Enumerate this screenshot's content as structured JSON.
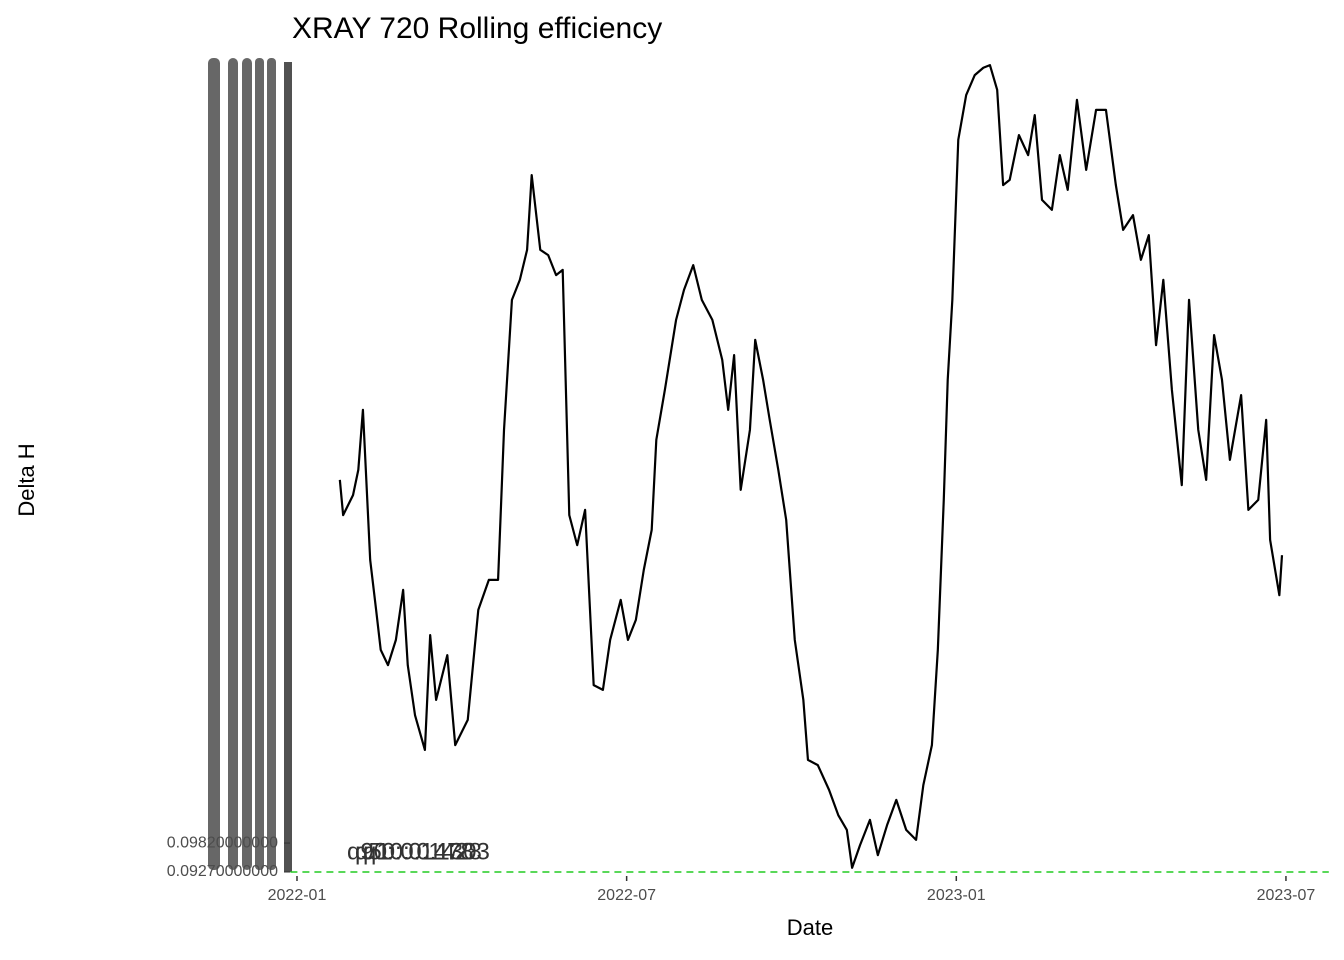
{
  "chart_data": {
    "type": "line",
    "title": "XRAY 720 Rolling efficiency",
    "x_label": "Date",
    "y_label": "Delta H",
    "xlim": [
      2021.99,
      2023.565
    ],
    "xticks": [
      {
        "value": 2022.0,
        "label": "2022-01"
      },
      {
        "value": 2022.5,
        "label": "2022-07"
      },
      {
        "value": 2023.0,
        "label": "2023-01"
      },
      {
        "value": 2023.5,
        "label": "2023-07"
      }
    ],
    "ylim": [
      0.0927,
      0.2464
    ],
    "yticks": [
      {
        "value": 0.0927,
        "label": "0.09270000000"
      },
      {
        "value": 0.0982,
        "label": "0.09820000000"
      }
    ],
    "reference_line": {
      "value": 0.0927,
      "color": "#22cc22",
      "dashed": true
    },
    "annotations": [
      {
        "text": "q90: 0.1478",
        "color": "#1a1a8c"
      },
      {
        "text": "q50: 0.1428",
        "color": "#e0206a"
      },
      {
        "text": "q10: 0.1303",
        "color": "#22dd22"
      }
    ],
    "series": [
      {
        "name": "Delta H",
        "color": "#000000",
        "x": [
          2022.065,
          2022.07,
          2022.085,
          2022.093,
          2022.1,
          2022.111,
          2022.12,
          2022.127,
          2022.138,
          2022.15,
          2022.161,
          2022.168,
          2022.179,
          2022.194,
          2022.202,
          2022.211,
          2022.228,
          2022.24,
          2022.259,
          2022.275,
          2022.291,
          2022.305,
          2022.314,
          2022.326,
          2022.338,
          2022.349,
          2022.356,
          2022.369,
          2022.381,
          2022.393,
          2022.403,
          2022.413,
          2022.425,
          2022.437,
          2022.45,
          2022.464,
          2022.475,
          2022.491,
          2022.502,
          2022.514,
          2022.526,
          2022.538,
          2022.545,
          2022.558,
          2022.575,
          2022.587,
          2022.601,
          2022.614,
          2022.63,
          2022.645,
          2022.654,
          2022.663,
          2022.673,
          2022.687,
          2022.695,
          2022.707,
          2022.717,
          2022.73,
          2022.742,
          2022.755,
          2022.768,
          2022.775,
          2022.79,
          2022.807,
          2022.821,
          2022.834,
          2022.842,
          2022.854,
          2022.869,
          2022.881,
          2022.895,
          2022.909,
          2022.924,
          2022.939,
          2022.95,
          2022.963,
          2022.972,
          2022.981,
          2022.987,
          2022.994,
          2023.003,
          2023.015,
          2023.028,
          2023.041,
          2023.051,
          2023.062,
          2023.071,
          2023.081,
          2023.095,
          2023.109,
          2023.119,
          2023.13,
          2023.145,
          2023.157,
          2023.169,
          2023.183,
          2023.197,
          2023.212,
          2023.227,
          2023.242,
          2023.253,
          2023.268,
          2023.28,
          2023.292,
          2023.303,
          2023.314,
          2023.327,
          2023.342,
          2023.353,
          2023.367,
          2023.379,
          2023.391,
          2023.403,
          2023.415,
          2023.432,
          2023.443,
          2023.458,
          2023.47,
          2023.476,
          2023.49,
          2023.494
        ],
        "values": [
          0.1672,
          0.1605,
          0.1643,
          0.1691,
          0.1805,
          0.152,
          0.1425,
          0.1349,
          0.132,
          0.1368,
          0.1463,
          0.132,
          0.1225,
          0.1159,
          0.1377,
          0.1254,
          0.1339,
          0.1168,
          0.1216,
          0.1425,
          0.1482,
          0.1482,
          0.1767,
          0.2014,
          0.2052,
          0.2109,
          0.2251,
          0.2109,
          0.2099,
          0.2061,
          0.2071,
          0.1605,
          0.1548,
          0.1615,
          0.1282,
          0.1273,
          0.1368,
          0.1444,
          0.1368,
          0.1406,
          0.1501,
          0.1577,
          0.1748,
          0.1843,
          0.1976,
          0.2033,
          0.208,
          0.2014,
          0.1976,
          0.19,
          0.1805,
          0.1909,
          0.1653,
          0.1767,
          0.1938,
          0.1862,
          0.1786,
          0.1691,
          0.1596,
          0.1368,
          0.1254,
          0.114,
          0.113,
          0.1083,
          0.1035,
          0.1007,
          0.0935,
          0.0978,
          0.1026,
          0.0959,
          0.1016,
          0.1064,
          0.1007,
          0.0988,
          0.1092,
          0.1168,
          0.1349,
          0.1634,
          0.1862,
          0.2014,
          0.2318,
          0.2403,
          0.2441,
          0.2455,
          0.246,
          0.2413,
          0.2232,
          0.2242,
          0.2327,
          0.2289,
          0.2365,
          0.2204,
          0.2185,
          0.2289,
          0.2223,
          0.2394,
          0.2261,
          0.2375,
          0.2375,
          0.2232,
          0.2147,
          0.2175,
          0.209,
          0.2137,
          0.1928,
          0.2052,
          0.1843,
          0.1662,
          0.2014,
          0.1767,
          0.1672,
          0.1947,
          0.1862,
          0.171,
          0.1833,
          0.1615,
          0.1634,
          0.1786,
          0.1558,
          0.1453,
          0.1529
        ]
      }
    ]
  }
}
